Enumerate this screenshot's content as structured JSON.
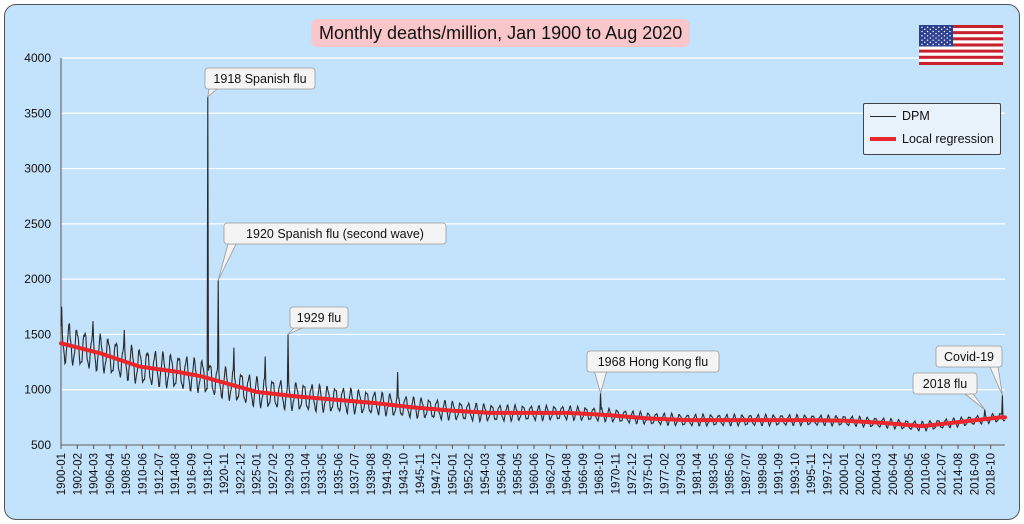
{
  "chart_data": {
    "type": "line",
    "title": "Monthly deaths/million, Jan 1900 to Aug 2020",
    "ylim": [
      500,
      4000
    ],
    "yticks": [
      500,
      1000,
      1500,
      2000,
      2500,
      3000,
      3500,
      4000
    ],
    "x_start": "1900-01",
    "x_end": "2020-08",
    "x_tick_labels": [
      "1900-01",
      "1902-02",
      "1904-03",
      "1906-04",
      "1908-05",
      "1910-06",
      "1912-07",
      "1914-08",
      "1916-09",
      "1918-10",
      "1920-11",
      "1922-12",
      "1925-01",
      "1927-02",
      "1929-03",
      "1931-04",
      "1933-05",
      "1935-06",
      "1937-07",
      "1939-08",
      "1941-09",
      "1943-10",
      "1945-11",
      "1947-12",
      "1950-01",
      "1952-02",
      "1954-03",
      "1956-04",
      "1958-05",
      "1960-06",
      "1962-07",
      "1964-08",
      "1966-09",
      "1968-10",
      "1970-11",
      "1972-12",
      "1975-01",
      "1977-02",
      "1979-03",
      "1981-04",
      "1983-05",
      "1985-06",
      "1987-07",
      "1989-08",
      "1991-09",
      "1993-10",
      "1995-11",
      "1997-12",
      "2000-01",
      "2002-02",
      "2004-03",
      "2006-04",
      "2008-05",
      "2010-06",
      "2012-07",
      "2014-08",
      "2016-09",
      "2018-10"
    ],
    "grid": true,
    "legend_position": "top-right",
    "series": [
      {
        "name": "DPM",
        "color": "#2a2a2a",
        "trend_points": [
          [
            1900,
            1420
          ],
          [
            1905,
            1330
          ],
          [
            1910,
            1210
          ],
          [
            1915,
            1160
          ],
          [
            1918,
            1120
          ],
          [
            1920,
            1080
          ],
          [
            1925,
            980
          ],
          [
            1930,
            940
          ],
          [
            1935,
            910
          ],
          [
            1940,
            880
          ],
          [
            1945,
            840
          ],
          [
            1950,
            810
          ],
          [
            1955,
            790
          ],
          [
            1960,
            790
          ],
          [
            1965,
            790
          ],
          [
            1970,
            770
          ],
          [
            1975,
            740
          ],
          [
            1980,
            725
          ],
          [
            1985,
            725
          ],
          [
            1990,
            725
          ],
          [
            1995,
            725
          ],
          [
            2000,
            720
          ],
          [
            2005,
            700
          ],
          [
            2010,
            670
          ],
          [
            2015,
            710
          ],
          [
            2020,
            750
          ]
        ],
        "seasonal_amplitude_points": [
          [
            1900,
            260
          ],
          [
            1915,
            230
          ],
          [
            1930,
            190
          ],
          [
            1945,
            140
          ],
          [
            1960,
            100
          ],
          [
            1975,
            80
          ],
          [
            1990,
            75
          ],
          [
            2005,
            65
          ],
          [
            2020,
            60
          ]
        ],
        "notable_peaks": [
          {
            "month": "1900-02",
            "value": 1750
          },
          {
            "month": "1901-02",
            "value": 1600
          },
          {
            "month": "1904-02",
            "value": 1620
          },
          {
            "month": "1908-02",
            "value": 1540
          },
          {
            "month": "1918-10",
            "value": 3650
          },
          {
            "month": "1920-02",
            "value": 1990
          },
          {
            "month": "1922-02",
            "value": 1380
          },
          {
            "month": "1926-02",
            "value": 1300
          },
          {
            "month": "1929-01",
            "value": 1500
          },
          {
            "month": "1943-01",
            "value": 1160
          },
          {
            "month": "1968-12",
            "value": 970
          },
          {
            "month": "2018-01",
            "value": 820
          },
          {
            "month": "2020-04",
            "value": 950
          }
        ]
      },
      {
        "name": "Local regression",
        "color": "#e8262b",
        "points": [
          [
            1900,
            1420
          ],
          [
            1905,
            1330
          ],
          [
            1910,
            1210
          ],
          [
            1915,
            1160
          ],
          [
            1918,
            1120
          ],
          [
            1920,
            1080
          ],
          [
            1925,
            980
          ],
          [
            1930,
            940
          ],
          [
            1935,
            910
          ],
          [
            1940,
            880
          ],
          [
            1945,
            840
          ],
          [
            1950,
            810
          ],
          [
            1955,
            790
          ],
          [
            1960,
            790
          ],
          [
            1965,
            790
          ],
          [
            1970,
            770
          ],
          [
            1975,
            740
          ],
          [
            1980,
            725
          ],
          [
            1985,
            725
          ],
          [
            1990,
            725
          ],
          [
            1995,
            725
          ],
          [
            2000,
            720
          ],
          [
            2005,
            700
          ],
          [
            2010,
            670
          ],
          [
            2015,
            710
          ],
          [
            2020,
            750
          ]
        ]
      }
    ],
    "annotations": [
      {
        "text": "1918 Spanish flu",
        "x": "1918-10",
        "y": 3650
      },
      {
        "text": "1920 Spanish flu (second wave)",
        "x": "1920-02",
        "y": 1990
      },
      {
        "text": "1929 flu",
        "x": "1929-01",
        "y": 1500
      },
      {
        "text": "1968 Hong Kong flu",
        "x": "1968-12",
        "y": 970
      },
      {
        "text": "2018 flu",
        "x": "2018-01",
        "y": 820
      },
      {
        "text": "Covid-19",
        "x": "2020-04",
        "y": 950
      }
    ],
    "flag": "united-states-flag"
  }
}
